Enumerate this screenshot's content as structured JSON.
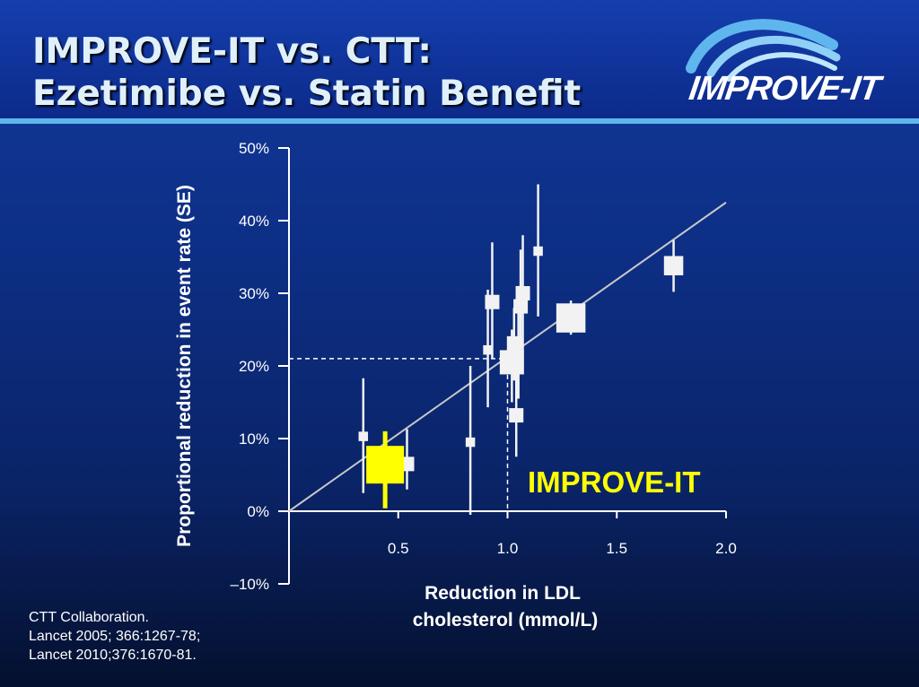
{
  "slide": {
    "title_line1": "IMPROVE-IT vs. CTT:",
    "title_line2": "Ezetimibe vs. Statin Benefit",
    "logo_text": "IMPROVE-IT",
    "citation": [
      "CTT Collaboration.",
      "Lancet 2005; 366:1267-78;",
      "Lancet 2010;376:1670-81."
    ]
  },
  "colors": {
    "background": "#0d2f86",
    "header_rule": "#5fb6ee",
    "axis": "#ffffff",
    "marker": "#f2f2f2",
    "highlight": "#ffff00",
    "regression_line": "#c8c8c8"
  },
  "chart_data": {
    "type": "scatter",
    "title": "",
    "xlabel_lines": [
      "Reduction in LDL",
      "cholesterol (mmol/L)"
    ],
    "ylabel": "Proportional reduction in event rate (SE)",
    "xlim": [
      0,
      2.0
    ],
    "ylim": [
      -10,
      50
    ],
    "x_ticks": [
      {
        "value": 0.5,
        "label": "0.5"
      },
      {
        "value": 1.0,
        "label": "1.0"
      },
      {
        "value": 1.5,
        "label": "1.5"
      },
      {
        "value": 2.0,
        "label": "2.0"
      }
    ],
    "y_ticks": [
      {
        "value": 50,
        "label": "50%"
      },
      {
        "value": 40,
        "label": "40%"
      },
      {
        "value": 30,
        "label": "30%"
      },
      {
        "value": 20,
        "label": "20%"
      },
      {
        "value": 10,
        "label": "10%"
      },
      {
        "value": 0,
        "label": "0%"
      },
      {
        "value": -10,
        "label": "–10%"
      }
    ],
    "regression_line": {
      "x": [
        0,
        2.0
      ],
      "y": [
        0,
        42.5
      ]
    },
    "points": [
      {
        "x": 0.34,
        "y": 10.3,
        "lo": 2.5,
        "hi": 18.3,
        "weight": 1
      },
      {
        "x": 0.54,
        "y": 6.5,
        "lo": 3.0,
        "hi": 11.3,
        "weight": 2
      },
      {
        "x": 0.83,
        "y": 9.5,
        "lo": -0.5,
        "hi": 20.0,
        "weight": 1
      },
      {
        "x": 0.91,
        "y": 22.2,
        "lo": 14.3,
        "hi": 30.5,
        "weight": 1
      },
      {
        "x": 0.93,
        "y": 28.8,
        "lo": 21.0,
        "hi": 37.0,
        "weight": 2
      },
      {
        "x": 1.02,
        "y": 20.5,
        "lo": 15.0,
        "hi": 25.0,
        "weight": 4
      },
      {
        "x": 1.03,
        "y": 23.1,
        "lo": 18.0,
        "hi": 28.0,
        "weight": 2
      },
      {
        "x": 1.04,
        "y": 13.2,
        "lo": 7.5,
        "hi": 19.0,
        "weight": 2
      },
      {
        "x": 1.05,
        "y": 23.2,
        "lo": 15.5,
        "hi": 31.0,
        "weight": 1
      },
      {
        "x": 1.06,
        "y": 28.2,
        "lo": 20.5,
        "hi": 36.0,
        "weight": 2
      },
      {
        "x": 1.07,
        "y": 30.0,
        "lo": 22.0,
        "hi": 38.0,
        "weight": 2
      },
      {
        "x": 1.14,
        "y": 35.8,
        "lo": 26.8,
        "hi": 45.0,
        "weight": 1
      },
      {
        "x": 1.29,
        "y": 26.6,
        "lo": 24.3,
        "hi": 29.0,
        "weight": 5
      },
      {
        "x": 1.76,
        "y": 33.8,
        "lo": 30.2,
        "hi": 37.3,
        "weight": 3
      }
    ],
    "highlight": {
      "label": "IMPROVE-IT",
      "x": 0.44,
      "y": 6.4,
      "lo": 0.4,
      "hi": 11.0,
      "weight": 6,
      "reference_y": 21,
      "reference_x": 1.0
    }
  }
}
